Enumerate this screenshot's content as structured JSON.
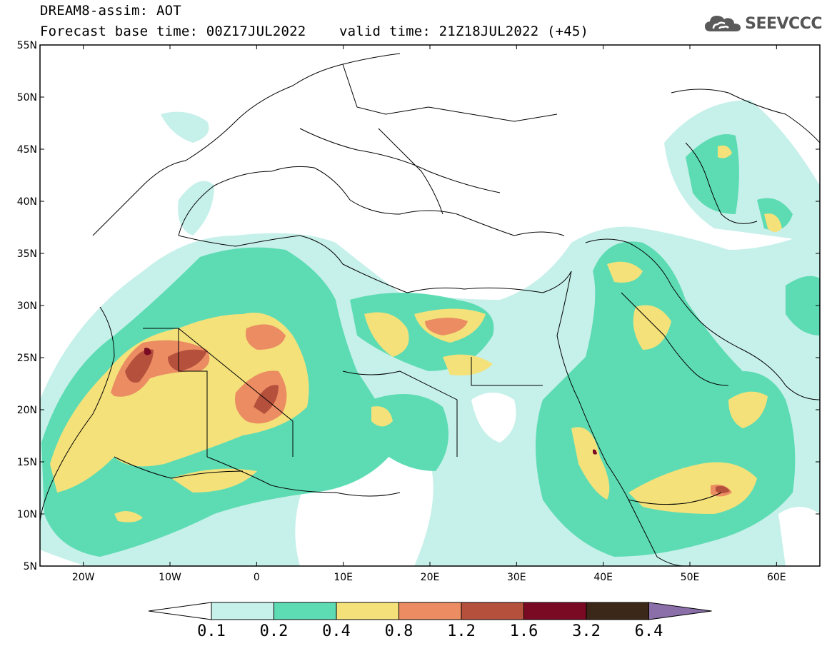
{
  "header": {
    "title_line1": "DREAM8-assim: AOT",
    "title_line2": "Forecast base time: 00Z17JUL2022    valid time: 21Z18JUL2022 (+45)"
  },
  "logo": {
    "text": "SEEVCCC",
    "icon": "cloud-icon",
    "color": "#555555"
  },
  "map": {
    "lon_range": [
      -25,
      65
    ],
    "lat_range": [
      5,
      55
    ],
    "lat_labels": [
      "5N",
      "10N",
      "15N",
      "20N",
      "25N",
      "30N",
      "35N",
      "40N",
      "45N",
      "50N",
      "55N"
    ],
    "lat_values": [
      5,
      10,
      15,
      20,
      25,
      30,
      35,
      40,
      45,
      50,
      55
    ],
    "lon_labels": [
      "20W",
      "10W",
      "0",
      "10E",
      "20E",
      "30E",
      "40E",
      "50E",
      "60E"
    ],
    "lon_values": [
      -20,
      -10,
      0,
      10,
      20,
      30,
      40,
      50,
      60
    ]
  },
  "legend": {
    "labels": [
      "0.1",
      "0.2",
      "0.4",
      "0.8",
      "1.2",
      "1.6",
      "3.2",
      "6.4"
    ],
    "colors": [
      "#ffffff",
      "#c6f0ea",
      "#5ddcb3",
      "#f4e17a",
      "#eb8c63",
      "#b4503c",
      "#7a0a24",
      "#3c2818",
      "#8a6fa8"
    ]
  }
}
